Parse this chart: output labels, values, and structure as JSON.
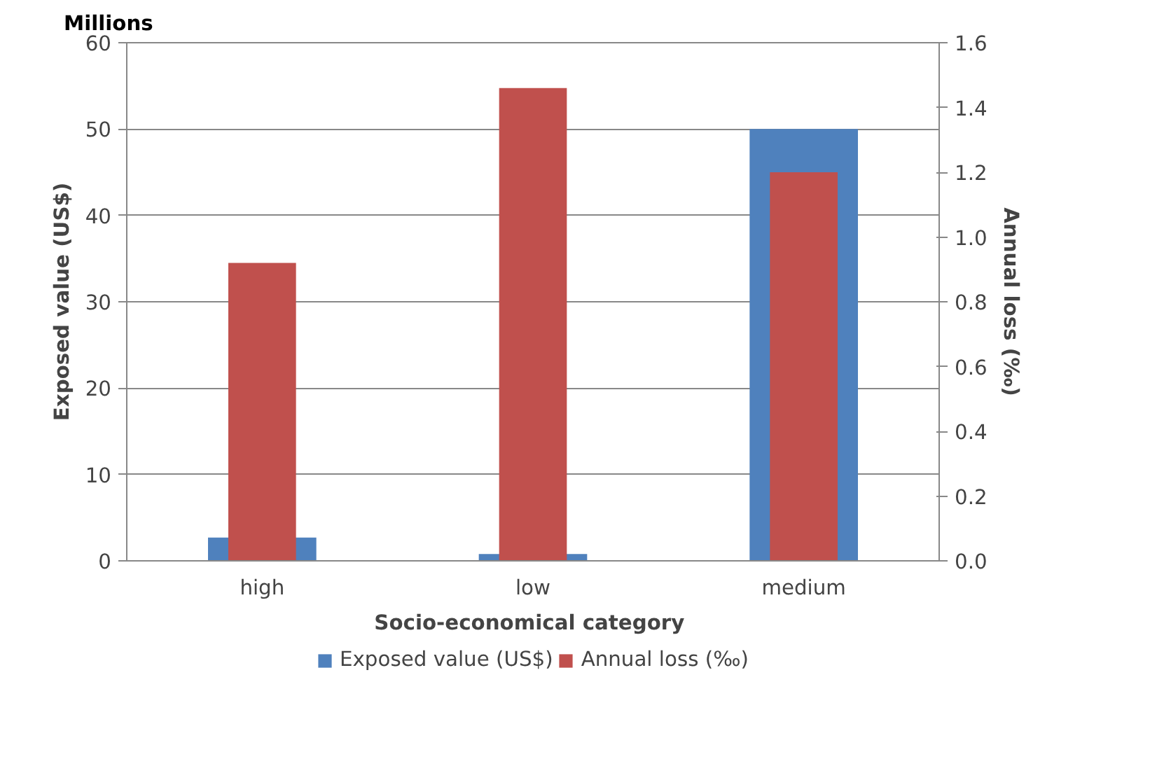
{
  "chart_data": {
    "type": "bar",
    "categories": [
      "high",
      "low",
      "medium"
    ],
    "xlabel": "Socio-economical  category",
    "ylabel": "Exposed value (US$)",
    "y2label": "Annual loss (‰)",
    "annotations": [
      "Millions"
    ],
    "series": [
      {
        "name": "Exposed value (US$)",
        "color": "#4f81bd",
        "values": [
          2.7,
          0.8,
          50
        ]
      },
      {
        "name": "Annual loss (‰)",
        "color": "#c0504d",
        "values": [
          0.92,
          1.46,
          1.2
        ],
        "axis": "y2"
      }
    ],
    "ylim": [
      0,
      60
    ],
    "yticks": [
      0,
      10,
      20,
      30,
      40,
      50,
      60
    ],
    "y2lim": [
      0,
      1.6
    ],
    "y2ticks": [
      {
        "value": 0,
        "label": "0.0"
      },
      {
        "value": 0.2,
        "label": "0.2"
      },
      {
        "value": 0.4,
        "label": "0.4"
      },
      {
        "value": 0.6,
        "label": "0.6"
      },
      {
        "value": 0.8,
        "label": "0.8"
      },
      {
        "value": 1.0,
        "label": "1.0"
      },
      {
        "value": 1.2,
        "label": "1.2"
      },
      {
        "value": 1.4,
        "label": "1.4"
      },
      {
        "value": 1.6,
        "label": "1.6"
      }
    ],
    "grid": "y",
    "legend": "bottom"
  }
}
